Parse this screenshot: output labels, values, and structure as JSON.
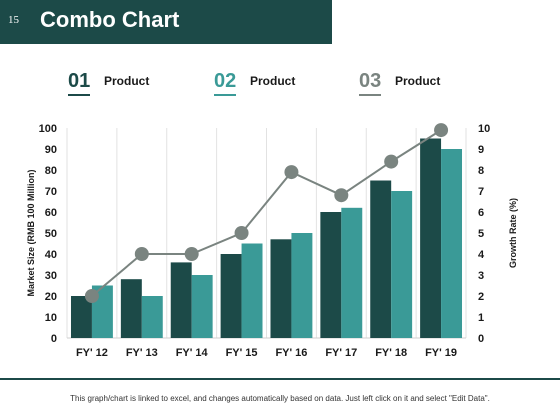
{
  "header": {
    "slide_number": "15",
    "title": "Combo Chart"
  },
  "legend": [
    {
      "number": "01",
      "label": "Product",
      "color": "#1c4a48"
    },
    {
      "number": "02",
      "label": "Product",
      "color": "#3a9a97"
    },
    {
      "number": "03",
      "label": "Product",
      "color": "#7a8480"
    }
  ],
  "footnote": "This graph/chart is linked to excel, and changes automatically based on data. Just left click on it and select \"Edit Data\".",
  "chart_data": {
    "type": "bar",
    "categories": [
      "FY' 12",
      "FY' 13",
      "FY' 14",
      "FY' 15",
      "FY' 16",
      "FY' 17",
      "FY' 18",
      "FY' 19"
    ],
    "series": [
      {
        "type": "bar",
        "values": [
          20,
          28,
          36,
          40,
          47,
          60,
          75,
          95
        ],
        "color": "#1c4a48"
      },
      {
        "type": "bar",
        "values": [
          25,
          20,
          30,
          45,
          50,
          62,
          70,
          90
        ],
        "color": "#3a9a97"
      },
      {
        "type": "line",
        "axis": "right",
        "values": [
          2,
          4,
          4,
          5,
          7.9,
          6.8,
          8.4,
          9.9
        ],
        "color": "#7a8480"
      }
    ],
    "ylabel": "Market Size (RMB 100 Million)",
    "y2label": "Growth Rate (%)",
    "ylim": [
      0,
      100
    ],
    "y2lim": [
      0,
      10
    ],
    "yticks": [
      "0",
      "10",
      "20",
      "30",
      "40",
      "50",
      "60",
      "70",
      "80",
      "90",
      "100"
    ],
    "y2ticks": [
      "0",
      "1",
      "2",
      "3",
      "4",
      "5",
      "6",
      "7",
      "8",
      "9",
      "10"
    ],
    "grid": true,
    "legend": "top"
  }
}
